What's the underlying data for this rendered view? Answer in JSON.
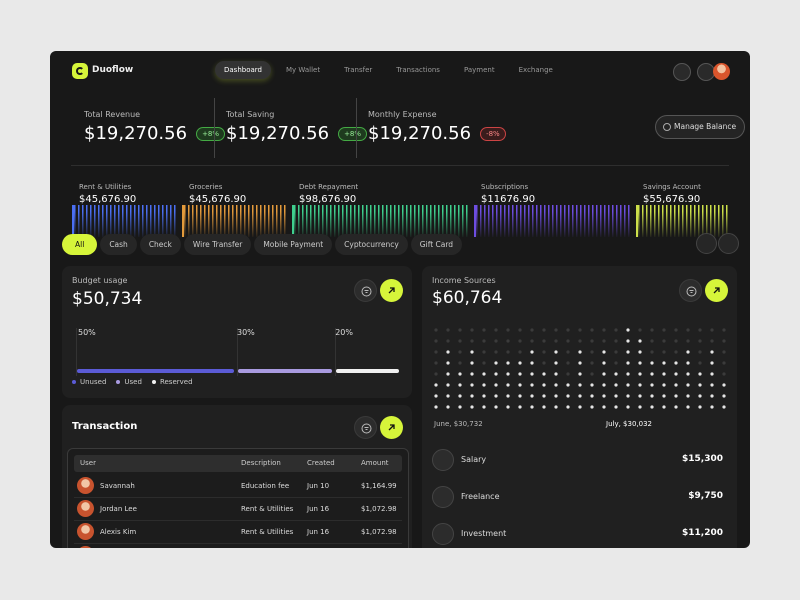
{
  "brand": "Duoflow",
  "nav": [
    "Dashboard",
    "My Wallet",
    "Transfer",
    "Transactions",
    "Payment",
    "Exchange"
  ],
  "stats": [
    {
      "label": "Total Revenue",
      "value": "$19,270.56",
      "change": "+8%"
    },
    {
      "label": "Total Saving",
      "value": "$19,270.56",
      "change": "+8%"
    },
    {
      "label": "Monthly Expense",
      "value": "$19,270.56",
      "change": "-8%"
    }
  ],
  "manage_button": "Manage Balance",
  "categories": [
    {
      "label": "Rent & Utilities",
      "amount": "$45,676.90"
    },
    {
      "label": "Groceries",
      "amount": "$45,676.90"
    },
    {
      "label": "Debt Repayment",
      "amount": "$98,676.90"
    },
    {
      "label": "Subscriptions",
      "amount": "$11676.90"
    },
    {
      "label": "Savings Account",
      "amount": "$55,676.90"
    }
  ],
  "filters": [
    "All",
    "Cash",
    "Check",
    "Wire Transfer",
    "Mobile Payment",
    "Cyptocurrency",
    "Gift Card"
  ],
  "budget": {
    "title": "Budget usage",
    "amount": "$50,734",
    "segments": [
      {
        "percent": "50%",
        "legend": "Unused"
      },
      {
        "percent": "30%",
        "legend": "Used"
      },
      {
        "percent": "20%",
        "legend": "Reserved"
      }
    ]
  },
  "transaction": {
    "title": "Transaction",
    "columns": [
      "User",
      "Description",
      "Created",
      "Amount"
    ],
    "rows": [
      [
        "Savannah",
        "Education fee",
        "Jun 10",
        "$1,164.99"
      ],
      [
        "Jordan Lee",
        "Rent & Utilities",
        "Jun 16",
        "$1,072.98"
      ],
      [
        "Alexis Kim",
        "Rent & Utilities",
        "Jun 16",
        "$1,072.98"
      ]
    ]
  },
  "income": {
    "title": "Income Sources",
    "amount": "$60,764",
    "markers": [
      "June, $30,732",
      "July, $30,032"
    ],
    "sources": [
      {
        "label": "Salary",
        "amount": "$15,300"
      },
      {
        "label": "Freelance",
        "amount": "$9,750"
      },
      {
        "label": "Investment",
        "amount": "$11,200"
      }
    ]
  }
}
